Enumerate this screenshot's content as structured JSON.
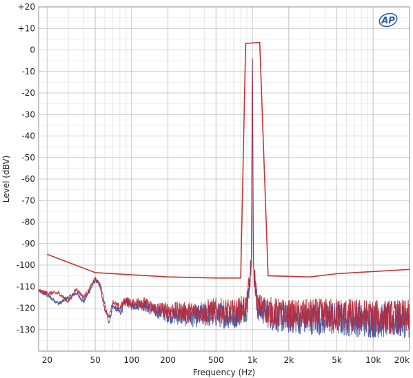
{
  "chart_data": {
    "type": "line",
    "title": "",
    "xlabel": "Frequency (Hz)",
    "ylabel": "Level (dBV)",
    "x_scale": "log",
    "xlim": [
      17,
      20000
    ],
    "ylim": [
      -140,
      20
    ],
    "grid": true,
    "legend": "none",
    "x_ticks": [
      {
        "value": 20,
        "label": "20"
      },
      {
        "value": 50,
        "label": "50"
      },
      {
        "value": 100,
        "label": "100"
      },
      {
        "value": 200,
        "label": "200"
      },
      {
        "value": 500,
        "label": "500"
      },
      {
        "value": 1000,
        "label": "1k"
      },
      {
        "value": 2000,
        "label": "2k"
      },
      {
        "value": 5000,
        "label": "5k"
      },
      {
        "value": 10000,
        "label": "10k"
      },
      {
        "value": 20000,
        "label": "20k"
      }
    ],
    "y_ticks": [
      {
        "value": 20,
        "label": "+20"
      },
      {
        "value": 10,
        "label": "+10"
      },
      {
        "value": 0,
        "label": "0"
      },
      {
        "value": -10,
        "label": "-10"
      },
      {
        "value": -20,
        "label": "-20"
      },
      {
        "value": -30,
        "label": "-30"
      },
      {
        "value": -40,
        "label": "-40"
      },
      {
        "value": -50,
        "label": "-50"
      },
      {
        "value": -60,
        "label": "-60"
      },
      {
        "value": -70,
        "label": "-70"
      },
      {
        "value": -80,
        "label": "-80"
      },
      {
        "value": -90,
        "label": "-90"
      },
      {
        "value": -100,
        "label": "-100"
      },
      {
        "value": -110,
        "label": "-110"
      },
      {
        "value": -120,
        "label": "-120"
      },
      {
        "value": -130,
        "label": "-130"
      }
    ],
    "series": [
      {
        "color": "#d03030",
        "style": "envelope",
        "x": [
          20,
          50,
          200,
          500,
          800,
          880,
          1150,
          1350,
          3000,
          5000,
          20000
        ],
        "y": [
          -95,
          -103.5,
          -105.5,
          -106,
          -106,
          3,
          3.5,
          -105,
          -105.5,
          -104,
          -102
        ]
      },
      {
        "color": "#3a4f9a",
        "style": "noise",
        "x": [
          17,
          20,
          25,
          30,
          35,
          40,
          45,
          50,
          55,
          60,
          65,
          70,
          80,
          90,
          100,
          120,
          150,
          200,
          300,
          500,
          700,
          900,
          980,
          1000,
          1020,
          1100,
          1500,
          2000,
          5000,
          10000,
          20000
        ],
        "y": [
          -112,
          -114,
          -118,
          -115,
          -113,
          -117,
          -112,
          -107,
          -109,
          -118,
          -127,
          -119,
          -122,
          -117,
          -119,
          -118,
          -121,
          -123,
          -124,
          -123,
          -124,
          -120,
          -100,
          1,
          -100,
          -120,
          -124,
          -125,
          -125,
          -126,
          -126
        ],
        "spread": [
          1,
          1,
          1,
          1,
          1,
          1,
          1,
          1,
          1,
          1,
          1,
          1,
          2,
          2,
          2,
          3,
          3,
          4,
          5,
          6,
          6,
          6,
          6,
          0,
          6,
          6,
          7,
          7,
          8,
          8,
          8
        ]
      },
      {
        "color": "#b8283a",
        "style": "noise",
        "x": [
          17,
          20,
          25,
          30,
          35,
          40,
          45,
          50,
          55,
          60,
          65,
          70,
          80,
          90,
          100,
          120,
          150,
          200,
          300,
          500,
          700,
          900,
          980,
          1000,
          1020,
          1100,
          1500,
          2000,
          5000,
          10000,
          20000
        ],
        "y": [
          -112,
          -113,
          -113,
          -117,
          -111,
          -115,
          -111,
          -106,
          -110,
          -121,
          -124,
          -117,
          -120,
          -116,
          -118,
          -117,
          -120,
          -121,
          -122,
          -121,
          -122,
          -119,
          -100,
          1,
          -100,
          -119,
          -122,
          -123,
          -123,
          -124,
          -124
        ],
        "spread": [
          1,
          1,
          1,
          1,
          1,
          1,
          1,
          1,
          1,
          1,
          1,
          1,
          2,
          2,
          2,
          3,
          3,
          4,
          5,
          6,
          6,
          6,
          6,
          0,
          6,
          6,
          7,
          7,
          8,
          8,
          8
        ]
      }
    ]
  },
  "logo": {
    "text": "AP",
    "color": "#2e5fa8"
  }
}
